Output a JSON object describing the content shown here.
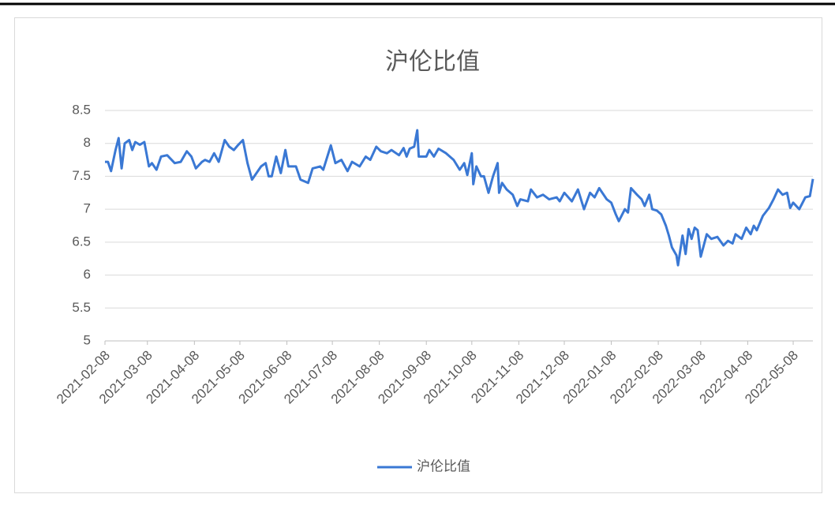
{
  "chart_data": {
    "type": "line",
    "title": "沪伦比值",
    "x": [
      "2021-02-08",
      "2021-02-10",
      "2021-02-12",
      "2021-02-15",
      "2021-02-17",
      "2021-02-19",
      "2021-02-21",
      "2021-02-24",
      "2021-02-26",
      "2021-02-28",
      "2021-03-03",
      "2021-03-06",
      "2021-03-09",
      "2021-03-11",
      "2021-03-14",
      "2021-03-17",
      "2021-03-21",
      "2021-03-26",
      "2021-03-30",
      "2021-04-03",
      "2021-04-06",
      "2021-04-09",
      "2021-04-13",
      "2021-04-15",
      "2021-04-18",
      "2021-04-21",
      "2021-04-24",
      "2021-04-28",
      "2021-05-01",
      "2021-05-04",
      "2021-05-07",
      "2021-05-10",
      "2021-05-13",
      "2021-05-16",
      "2021-05-22",
      "2021-05-25",
      "2021-05-27",
      "2021-05-29",
      "2021-06-01",
      "2021-06-04",
      "2021-06-07",
      "2021-06-09",
      "2021-06-14",
      "2021-06-17",
      "2021-06-22",
      "2021-06-25",
      "2021-06-30",
      "2021-07-02",
      "2021-07-07",
      "2021-07-10",
      "2021-07-14",
      "2021-07-18",
      "2021-07-21",
      "2021-07-26",
      "2021-07-30",
      "2021-08-02",
      "2021-08-06",
      "2021-08-09",
      "2021-08-13",
      "2021-08-16",
      "2021-08-21",
      "2021-08-24",
      "2021-08-26",
      "2021-08-28",
      "2021-08-31",
      "2021-09-02",
      "2021-09-03",
      "2021-09-08",
      "2021-09-10",
      "2021-09-13",
      "2021-09-16",
      "2021-09-21",
      "2021-09-26",
      "2021-09-30",
      "2021-10-03",
      "2021-10-05",
      "2021-10-08",
      "2021-10-09",
      "2021-10-11",
      "2021-10-14",
      "2021-10-16",
      "2021-10-19",
      "2021-10-22",
      "2021-10-25",
      "2021-10-26",
      "2021-10-28",
      "2021-10-31",
      "2021-11-04",
      "2021-11-07",
      "2021-11-09",
      "2021-11-14",
      "2021-11-16",
      "2021-11-20",
      "2021-11-24",
      "2021-11-28",
      "2021-12-03",
      "2021-12-05",
      "2021-12-08",
      "2021-12-13",
      "2021-12-17",
      "2021-12-21",
      "2021-12-25",
      "2021-12-28",
      "2021-12-31",
      "2022-01-05",
      "2022-01-08",
      "2022-01-11",
      "2022-01-13",
      "2022-01-17",
      "2022-01-19",
      "2022-01-21",
      "2022-01-25",
      "2022-01-28",
      "2022-01-30",
      "2022-02-02",
      "2022-02-04",
      "2022-02-07",
      "2022-02-10",
      "2022-02-13",
      "2022-02-15",
      "2022-02-17",
      "2022-02-20",
      "2022-02-21",
      "2022-02-24",
      "2022-02-26",
      "2022-02-28",
      "2022-03-02",
      "2022-03-04",
      "2022-03-06",
      "2022-03-08",
      "2022-03-10",
      "2022-03-12",
      "2022-03-15",
      "2022-03-19",
      "2022-03-23",
      "2022-03-26",
      "2022-03-29",
      "2022-03-31",
      "2022-04-04",
      "2022-04-07",
      "2022-04-10",
      "2022-04-12",
      "2022-04-14",
      "2022-04-18",
      "2022-04-22",
      "2022-04-25",
      "2022-04-28",
      "2022-05-01",
      "2022-05-04",
      "2022-05-06",
      "2022-05-08",
      "2022-05-12",
      "2022-05-16",
      "2022-05-19",
      "2022-05-21"
    ],
    "series": [
      {
        "name": "沪伦比值",
        "color": "#3a78d4",
        "values": [
          7.72,
          7.72,
          7.58,
          7.9,
          8.08,
          7.62,
          8.0,
          8.05,
          7.9,
          8.02,
          7.98,
          8.02,
          7.65,
          7.7,
          7.6,
          7.8,
          7.82,
          7.7,
          7.72,
          7.88,
          7.8,
          7.62,
          7.72,
          7.75,
          7.72,
          7.85,
          7.72,
          8.05,
          7.95,
          7.9,
          7.98,
          8.05,
          7.7,
          7.45,
          7.65,
          7.7,
          7.5,
          7.5,
          7.8,
          7.55,
          7.9,
          7.65,
          7.65,
          7.45,
          7.4,
          7.62,
          7.65,
          7.6,
          7.97,
          7.7,
          7.75,
          7.58,
          7.72,
          7.65,
          7.8,
          7.75,
          7.95,
          7.88,
          7.85,
          7.9,
          7.82,
          7.93,
          7.8,
          7.92,
          7.95,
          8.2,
          7.8,
          7.8,
          7.9,
          7.8,
          7.92,
          7.85,
          7.75,
          7.6,
          7.7,
          7.52,
          7.85,
          7.38,
          7.65,
          7.5,
          7.5,
          7.25,
          7.5,
          7.7,
          7.25,
          7.4,
          7.3,
          7.22,
          7.05,
          7.15,
          7.12,
          7.3,
          7.18,
          7.22,
          7.15,
          7.18,
          7.12,
          7.25,
          7.12,
          7.3,
          7.0,
          7.25,
          7.18,
          7.32,
          7.15,
          7.1,
          6.92,
          6.82,
          7.0,
          6.95,
          7.32,
          7.22,
          7.15,
          7.05,
          7.22,
          7.0,
          6.98,
          6.92,
          6.75,
          6.6,
          6.42,
          6.3,
          6.15,
          6.6,
          6.32,
          6.7,
          6.55,
          6.72,
          6.68,
          6.28,
          6.45,
          6.62,
          6.55,
          6.58,
          6.45,
          6.52,
          6.48,
          6.62,
          6.55,
          6.72,
          6.62,
          6.75,
          6.68,
          6.9,
          7.02,
          7.15,
          7.3,
          7.22,
          7.25,
          7.02,
          7.1,
          7.0,
          7.18,
          7.2,
          7.46
        ]
      }
    ],
    "xlim": [
      "2021-02-08",
      "2022-05-21"
    ],
    "xticks": [
      "2021-02-08",
      "2021-03-08",
      "2021-04-08",
      "2021-05-08",
      "2021-06-08",
      "2021-07-08",
      "2021-08-08",
      "2021-09-08",
      "2021-10-08",
      "2021-11-08",
      "2021-12-08",
      "2022-01-08",
      "2022-02-08",
      "2022-03-08",
      "2022-04-08",
      "2022-05-08"
    ],
    "ylim": [
      5,
      8.5
    ],
    "yticks": [
      5,
      5.5,
      6,
      6.5,
      7,
      7.5,
      8,
      8.5
    ],
    "grid": true,
    "legend": "bottom"
  }
}
